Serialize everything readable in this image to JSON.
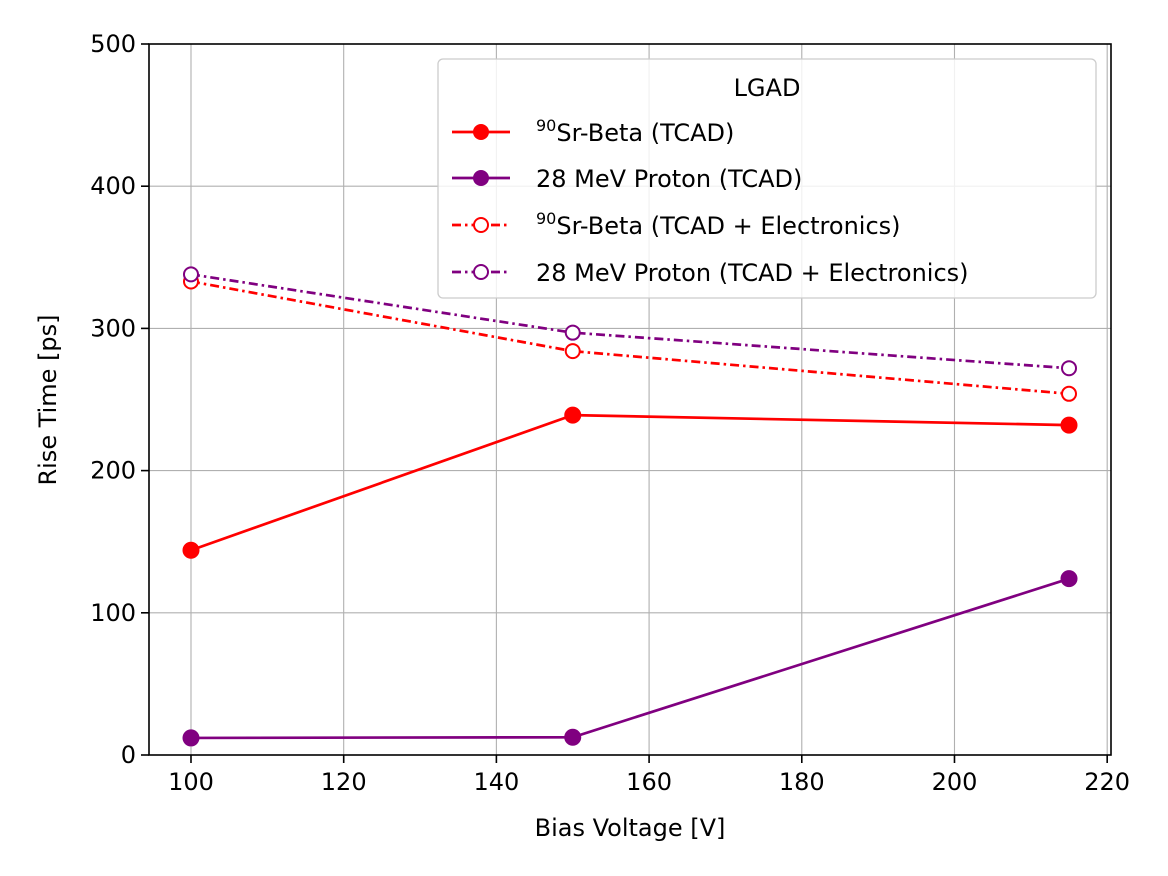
{
  "chart_data": {
    "type": "line",
    "title": "",
    "xlabel": "Bias Voltage [V]",
    "ylabel": "Rise Time [ps]",
    "xlim": [
      94.5,
      220.5
    ],
    "ylim": [
      0,
      500
    ],
    "xticks": [
      100,
      120,
      140,
      160,
      180,
      200,
      220
    ],
    "yticks": [
      0,
      100,
      200,
      300,
      400,
      500
    ],
    "grid": true,
    "legend": {
      "title": "LGAD",
      "position": "top-right"
    },
    "series": [
      {
        "name": "Sr-Beta (TCAD)",
        "sup": "90",
        "color": "#ff0000",
        "style": "solid",
        "marker": "filled",
        "x": [
          100,
          150,
          215
        ],
        "y": [
          144,
          239,
          232
        ]
      },
      {
        "name": "28 MeV Proton (TCAD)",
        "sup": "",
        "color": "#800080",
        "style": "solid",
        "marker": "filled",
        "x": [
          100,
          150,
          215
        ],
        "y": [
          12,
          12.5,
          124
        ]
      },
      {
        "name": "Sr-Beta (TCAD + Electronics)",
        "sup": "90",
        "color": "#ff0000",
        "style": "dashdot",
        "marker": "open",
        "x": [
          100,
          150,
          215
        ],
        "y": [
          333,
          284,
          254
        ]
      },
      {
        "name": "28 MeV Proton (TCAD + Electronics)",
        "sup": "",
        "color": "#800080",
        "style": "dashdot",
        "marker": "open",
        "x": [
          100,
          150,
          215
        ],
        "y": [
          338,
          297,
          272
        ]
      }
    ]
  }
}
